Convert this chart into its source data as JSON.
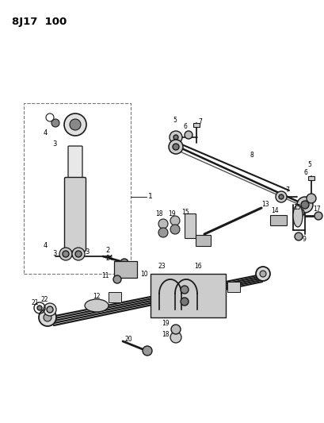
{
  "title": "8J17  100",
  "bg_color": "#ffffff",
  "lc": "#1a1a1a",
  "fig_width": 4.09,
  "fig_height": 5.33,
  "dpi": 100
}
